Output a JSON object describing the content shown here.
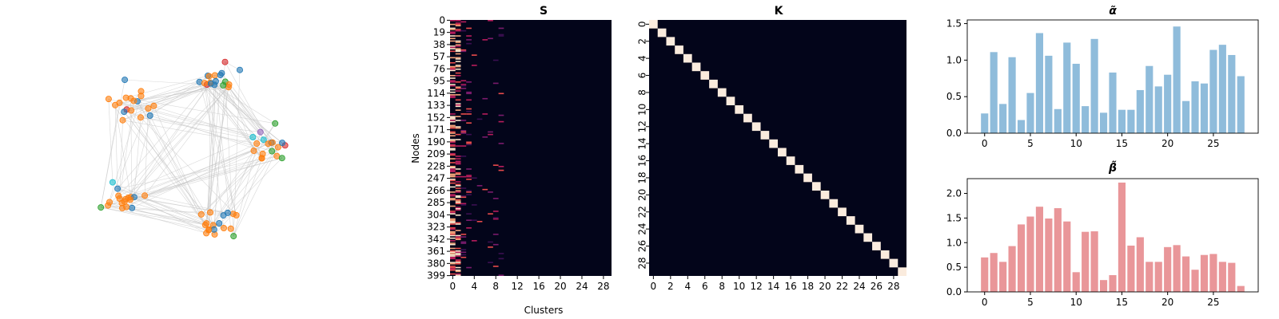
{
  "chart_data": [
    {
      "type": "scatter",
      "subtype": "network-graph",
      "title": "",
      "communities": 5,
      "nodes": 400,
      "node_colors": [
        "#ff7f0e",
        "#1f77b4",
        "#2ca02c",
        "#d62728",
        "#17becf",
        "#9467bd"
      ],
      "edge_color": "#c8c8c8"
    },
    {
      "type": "heatmap",
      "title": "S",
      "xlabel": "Clusters",
      "ylabel": "Nodes",
      "x_ticks": [
        "0",
        "4",
        "8",
        "12",
        "16",
        "20",
        "24",
        "28"
      ],
      "y_ticks": [
        "0",
        "19",
        "38",
        "57",
        "76",
        "95",
        "114",
        "133",
        "152",
        "171",
        "190",
        "209",
        "228",
        "247",
        "266",
        "285",
        "304",
        "323",
        "342",
        "361",
        "380",
        "399"
      ],
      "rows": 400,
      "cols": 30
    },
    {
      "type": "heatmap",
      "title": "K",
      "xlabel": "",
      "ylabel": "",
      "x_ticks": [
        "0",
        "2",
        "4",
        "6",
        "8",
        "10",
        "12",
        "14",
        "16",
        "18",
        "20",
        "22",
        "24",
        "26",
        "28"
      ],
      "y_ticks": [
        "0",
        "2",
        "4",
        "6",
        "8",
        "10",
        "12",
        "14",
        "16",
        "18",
        "20",
        "22",
        "24",
        "26",
        "28"
      ],
      "size": 30,
      "pattern": "identity"
    },
    {
      "type": "bar",
      "title": "α̃",
      "color": "#8fbcdb",
      "x": [
        0,
        1,
        2,
        3,
        4,
        5,
        6,
        7,
        8,
        9,
        10,
        11,
        12,
        13,
        14,
        15,
        16,
        17,
        18,
        19,
        20,
        21,
        22,
        23,
        24,
        25,
        26,
        27,
        28
      ],
      "values": [
        0.27,
        1.11,
        0.4,
        1.04,
        0.18,
        0.55,
        1.37,
        1.06,
        0.33,
        1.24,
        0.95,
        0.37,
        1.29,
        0.28,
        0.83,
        0.32,
        0.32,
        0.59,
        0.92,
        0.64,
        0.8,
        1.46,
        0.44,
        0.71,
        0.68,
        1.14,
        1.21,
        1.07,
        0.78
      ],
      "x_ticks": [
        "0",
        "5",
        "10",
        "15",
        "20",
        "25"
      ],
      "y_ticks": [
        "0.0",
        "0.5",
        "1.0",
        "1.5"
      ],
      "ylim": [
        0,
        1.55
      ]
    },
    {
      "type": "bar",
      "title": "β̃",
      "color": "#e99699",
      "x": [
        0,
        1,
        2,
        3,
        4,
        5,
        6,
        7,
        8,
        9,
        10,
        11,
        12,
        13,
        14,
        15,
        16,
        17,
        18,
        19,
        20,
        21,
        22,
        23,
        24,
        25,
        26,
        27,
        28
      ],
      "values": [
        0.7,
        0.79,
        0.61,
        0.93,
        1.37,
        1.53,
        1.73,
        1.49,
        1.7,
        1.43,
        0.4,
        1.22,
        1.23,
        0.24,
        0.34,
        2.22,
        0.94,
        1.11,
        0.61,
        0.61,
        0.91,
        0.95,
        0.72,
        0.45,
        0.75,
        0.77,
        0.61,
        0.59,
        0.12
      ],
      "x_ticks": [
        "0",
        "5",
        "10",
        "15",
        "20",
        "25"
      ],
      "y_ticks": [
        "0.0",
        "0.5",
        "1.0",
        "1.5",
        "2.0"
      ],
      "ylim": [
        0,
        2.3
      ]
    }
  ]
}
